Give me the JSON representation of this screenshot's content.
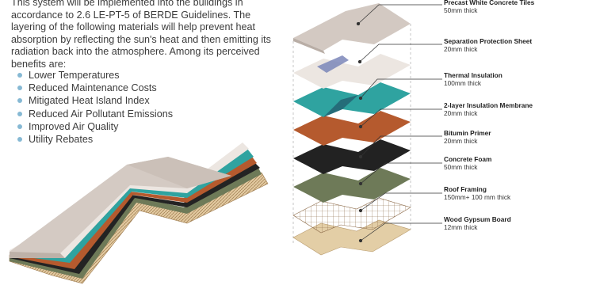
{
  "intro": "This system will be implemented into the buildings in accordance to 2.6 LE-PT-5 of BERDE Guidelines. The layering of the following materials will help prevent heat absorption by reflecting the sun's heat and then emitting its radiation back into the atmosphere. Among its perceived benefits are:",
  "benefits": [
    "Lower Temperatures",
    "Reduced Maintenance Costs",
    "Mitigated Heat Island Index",
    "Reduced Air Pollutant Emissions",
    "Improved Air Quality",
    "Utility Rebates"
  ],
  "colors": {
    "bullet": "#86b9d4",
    "concrete_tile": "#d3c9c2",
    "separation_sheet": "#ebe4df",
    "thermal_insulation": "#2fa3a0",
    "membrane": "#b55a2e",
    "bitumin": "#222222",
    "concrete_foam": "#6e7a58",
    "gypsum": "#e3cea6"
  },
  "layers": [
    {
      "name": "Precast White Concrete Tiles",
      "thickness": "50mm thick"
    },
    {
      "name": "Separation Protection Sheet",
      "thickness": "20mm thick"
    },
    {
      "name": "Thermal Insulation",
      "thickness": "100mm thick"
    },
    {
      "name": "2-layer Insulation Membrane",
      "thickness": "20mm thick"
    },
    {
      "name": "Bitumin Primer",
      "thickness": "20mm thick"
    },
    {
      "name": "Concrete Foam",
      "thickness": "50mm thick"
    },
    {
      "name": "Roof Framing",
      "thickness": "150mm+ 100 mm thick"
    },
    {
      "name": "Wood Gypsum Board",
      "thickness": "12mm thick"
    }
  ]
}
